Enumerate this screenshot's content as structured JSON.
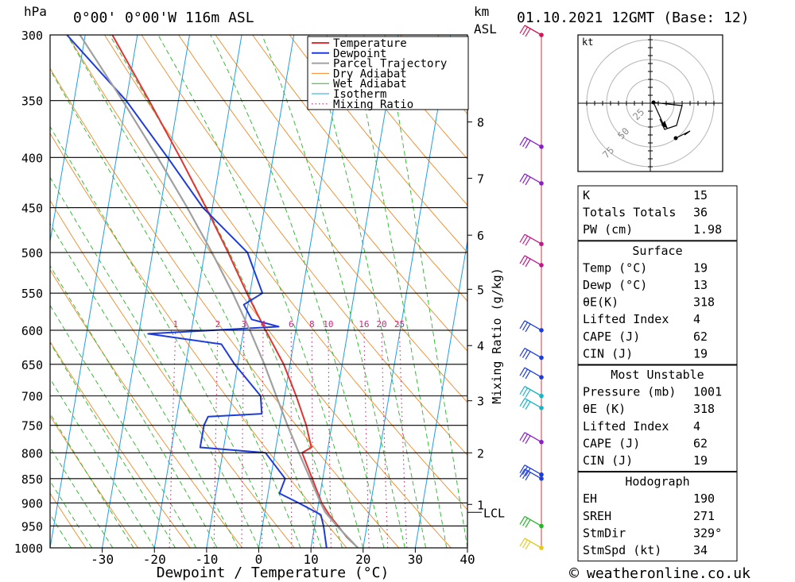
{
  "header": {
    "pressure_unit": "hPa",
    "location": "0°00' 0°00'W 116m ASL",
    "km_label": "km",
    "asl_label": "ASL",
    "datetime": "01.10.2021 12GMT (Base: 12)"
  },
  "chart_data": {
    "type": "skew-t log-p",
    "xlabel": "Dewpoint / Temperature (°C)",
    "ylabel": "hPa",
    "secondary_ylabel": "Mixing Ratio (g/kg)",
    "pressure_ticks": [
      300,
      350,
      400,
      450,
      500,
      550,
      600,
      650,
      700,
      750,
      800,
      850,
      900,
      950,
      1000
    ],
    "temperature_ticks": [
      -30,
      -20,
      -10,
      0,
      10,
      20,
      30,
      40
    ],
    "xlim": [
      -40,
      40
    ],
    "ylim": [
      1000,
      300
    ],
    "skew_deg_per_decade": 32,
    "height_ticks_km": [
      {
        "label": "8",
        "p": 368
      },
      {
        "label": "7",
        "p": 420
      },
      {
        "label": "6",
        "p": 480
      },
      {
        "label": "5",
        "p": 545
      },
      {
        "label": "4",
        "p": 622
      },
      {
        "label": "3",
        "p": 708
      },
      {
        "label": "2",
        "p": 800
      },
      {
        "label": "1",
        "p": 903
      }
    ],
    "lcl_label": "LCL",
    "lcl_p": 920,
    "mixing_ratio_labels": [
      "1",
      "2",
      "3",
      "4",
      "6",
      "8",
      "10",
      "16",
      "20",
      "25"
    ],
    "mixing_ratio_values": [
      1,
      2,
      3,
      4,
      6,
      8,
      10,
      16,
      20,
      25
    ],
    "mixing_ratio_label_p": 600,
    "legend": [
      "Temperature",
      "Dewpoint",
      "Parcel Trajectory",
      "Dry Adiabat",
      "Wet Adiabat",
      "Isotherm",
      "Mixing Ratio"
    ],
    "series": [
      {
        "name": "Temperature",
        "color": "#e33333",
        "points": [
          [
            1000,
            19
          ],
          [
            975,
            16.5
          ],
          [
            950,
            14.5
          ],
          [
            925,
            12.4
          ],
          [
            900,
            10.6
          ],
          [
            850,
            8.0
          ],
          [
            800,
            5.2
          ],
          [
            790,
            6.8
          ],
          [
            750,
            5.1
          ],
          [
            700,
            2.2
          ],
          [
            650,
            -1.2
          ],
          [
            600,
            -5.8
          ],
          [
            550,
            -10.6
          ],
          [
            500,
            -15.5
          ],
          [
            450,
            -21.2
          ],
          [
            400,
            -27.8
          ],
          [
            350,
            -35.6
          ],
          [
            300,
            -44.8
          ]
        ]
      },
      {
        "name": "Dewpoint",
        "color": "#1e3cdc",
        "points": [
          [
            1000,
            13
          ],
          [
            950,
            11.7
          ],
          [
            925,
            10.8
          ],
          [
            900,
            6.2
          ],
          [
            880,
            2.2
          ],
          [
            850,
            2.8
          ],
          [
            800,
            -1.8
          ],
          [
            790,
            -14.5
          ],
          [
            750,
            -14.5
          ],
          [
            735,
            -14
          ],
          [
            730,
            -3.8
          ],
          [
            700,
            -4.6
          ],
          [
            650,
            -10.6
          ],
          [
            620,
            -13.8
          ],
          [
            605,
            -28.2
          ],
          [
            595,
            -3.4
          ],
          [
            585,
            -8.8
          ],
          [
            565,
            -10.8
          ],
          [
            550,
            -7.6
          ],
          [
            500,
            -11.8
          ],
          [
            450,
            -21.8
          ],
          [
            400,
            -30.2
          ],
          [
            350,
            -40
          ],
          [
            300,
            -53.5
          ]
        ]
      },
      {
        "name": "Parcel Trajectory",
        "color": "#a0a0a0",
        "points": [
          [
            1000,
            19
          ],
          [
            950,
            14.3
          ],
          [
            920,
            11.6
          ],
          [
            900,
            10.4
          ],
          [
            850,
            7.6
          ],
          [
            800,
            4.6
          ],
          [
            750,
            1.5
          ],
          [
            700,
            -1.6
          ],
          [
            650,
            -4.9
          ],
          [
            600,
            -8.8
          ],
          [
            550,
            -13.3
          ],
          [
            500,
            -18.6
          ],
          [
            450,
            -24.8
          ],
          [
            400,
            -32.1
          ],
          [
            350,
            -40.7
          ],
          [
            300,
            -51
          ]
        ]
      }
    ],
    "wind_barbs": [
      {
        "p": 300,
        "color": "#d01858"
      },
      {
        "p": 390,
        "color": "#8a1ec8"
      },
      {
        "p": 425,
        "color": "#8a1ec8"
      },
      {
        "p": 490,
        "color": "#c0188c"
      },
      {
        "p": 515,
        "color": "#c0188c"
      },
      {
        "p": 600,
        "color": "#1e3cdc"
      },
      {
        "p": 640,
        "color": "#1e3cdc"
      },
      {
        "p": 670,
        "color": "#1e3cdc"
      },
      {
        "p": 700,
        "color": "#18b4c8"
      },
      {
        "p": 720,
        "color": "#18b4c8"
      },
      {
        "p": 780,
        "color": "#8a1ec8"
      },
      {
        "p": 842,
        "color": "#1e3cdc"
      },
      {
        "p": 850,
        "color": "#1e3cdc"
      },
      {
        "p": 950,
        "color": "#28b428"
      },
      {
        "p": 1000,
        "color": "#e6c81e"
      }
    ],
    "hodograph": {
      "unit_label": "kt",
      "ring_labels": [
        "25",
        "50",
        "75"
      ]
    }
  },
  "stats_table": {
    "indices": [
      {
        "label": "K",
        "value": "15"
      },
      {
        "label": "Totals Totals",
        "value": "36"
      },
      {
        "label": "PW (cm)",
        "value": "1.98"
      }
    ],
    "surface": {
      "title": "Surface",
      "rows": [
        {
          "label": "Temp (°C)",
          "value": "19"
        },
        {
          "label": "Dewp (°C)",
          "value": "13"
        },
        {
          "label": "θE(K)",
          "value": "318"
        },
        {
          "label": "Lifted Index",
          "value": "4"
        },
        {
          "label": "CAPE (J)",
          "value": "62"
        },
        {
          "label": "CIN (J)",
          "value": "19"
        }
      ]
    },
    "most_unstable": {
      "title": "Most Unstable",
      "rows": [
        {
          "label": "Pressure (mb)",
          "value": "1001"
        },
        {
          "label": "θE (K)",
          "value": "318"
        },
        {
          "label": "Lifted Index",
          "value": "4"
        },
        {
          "label": "CAPE (J)",
          "value": "62"
        },
        {
          "label": "CIN (J)",
          "value": "19"
        }
      ]
    },
    "hodograph": {
      "title": "Hodograph",
      "rows": [
        {
          "label": "EH",
          "value": "190"
        },
        {
          "label": "SREH",
          "value": "271"
        },
        {
          "label": "StmDir",
          "value": "329°"
        },
        {
          "label": "StmSpd (kt)",
          "value": "34"
        }
      ]
    }
  },
  "footer": {
    "copyright_symbol": "©",
    "site": "weatheronline.co.uk"
  }
}
